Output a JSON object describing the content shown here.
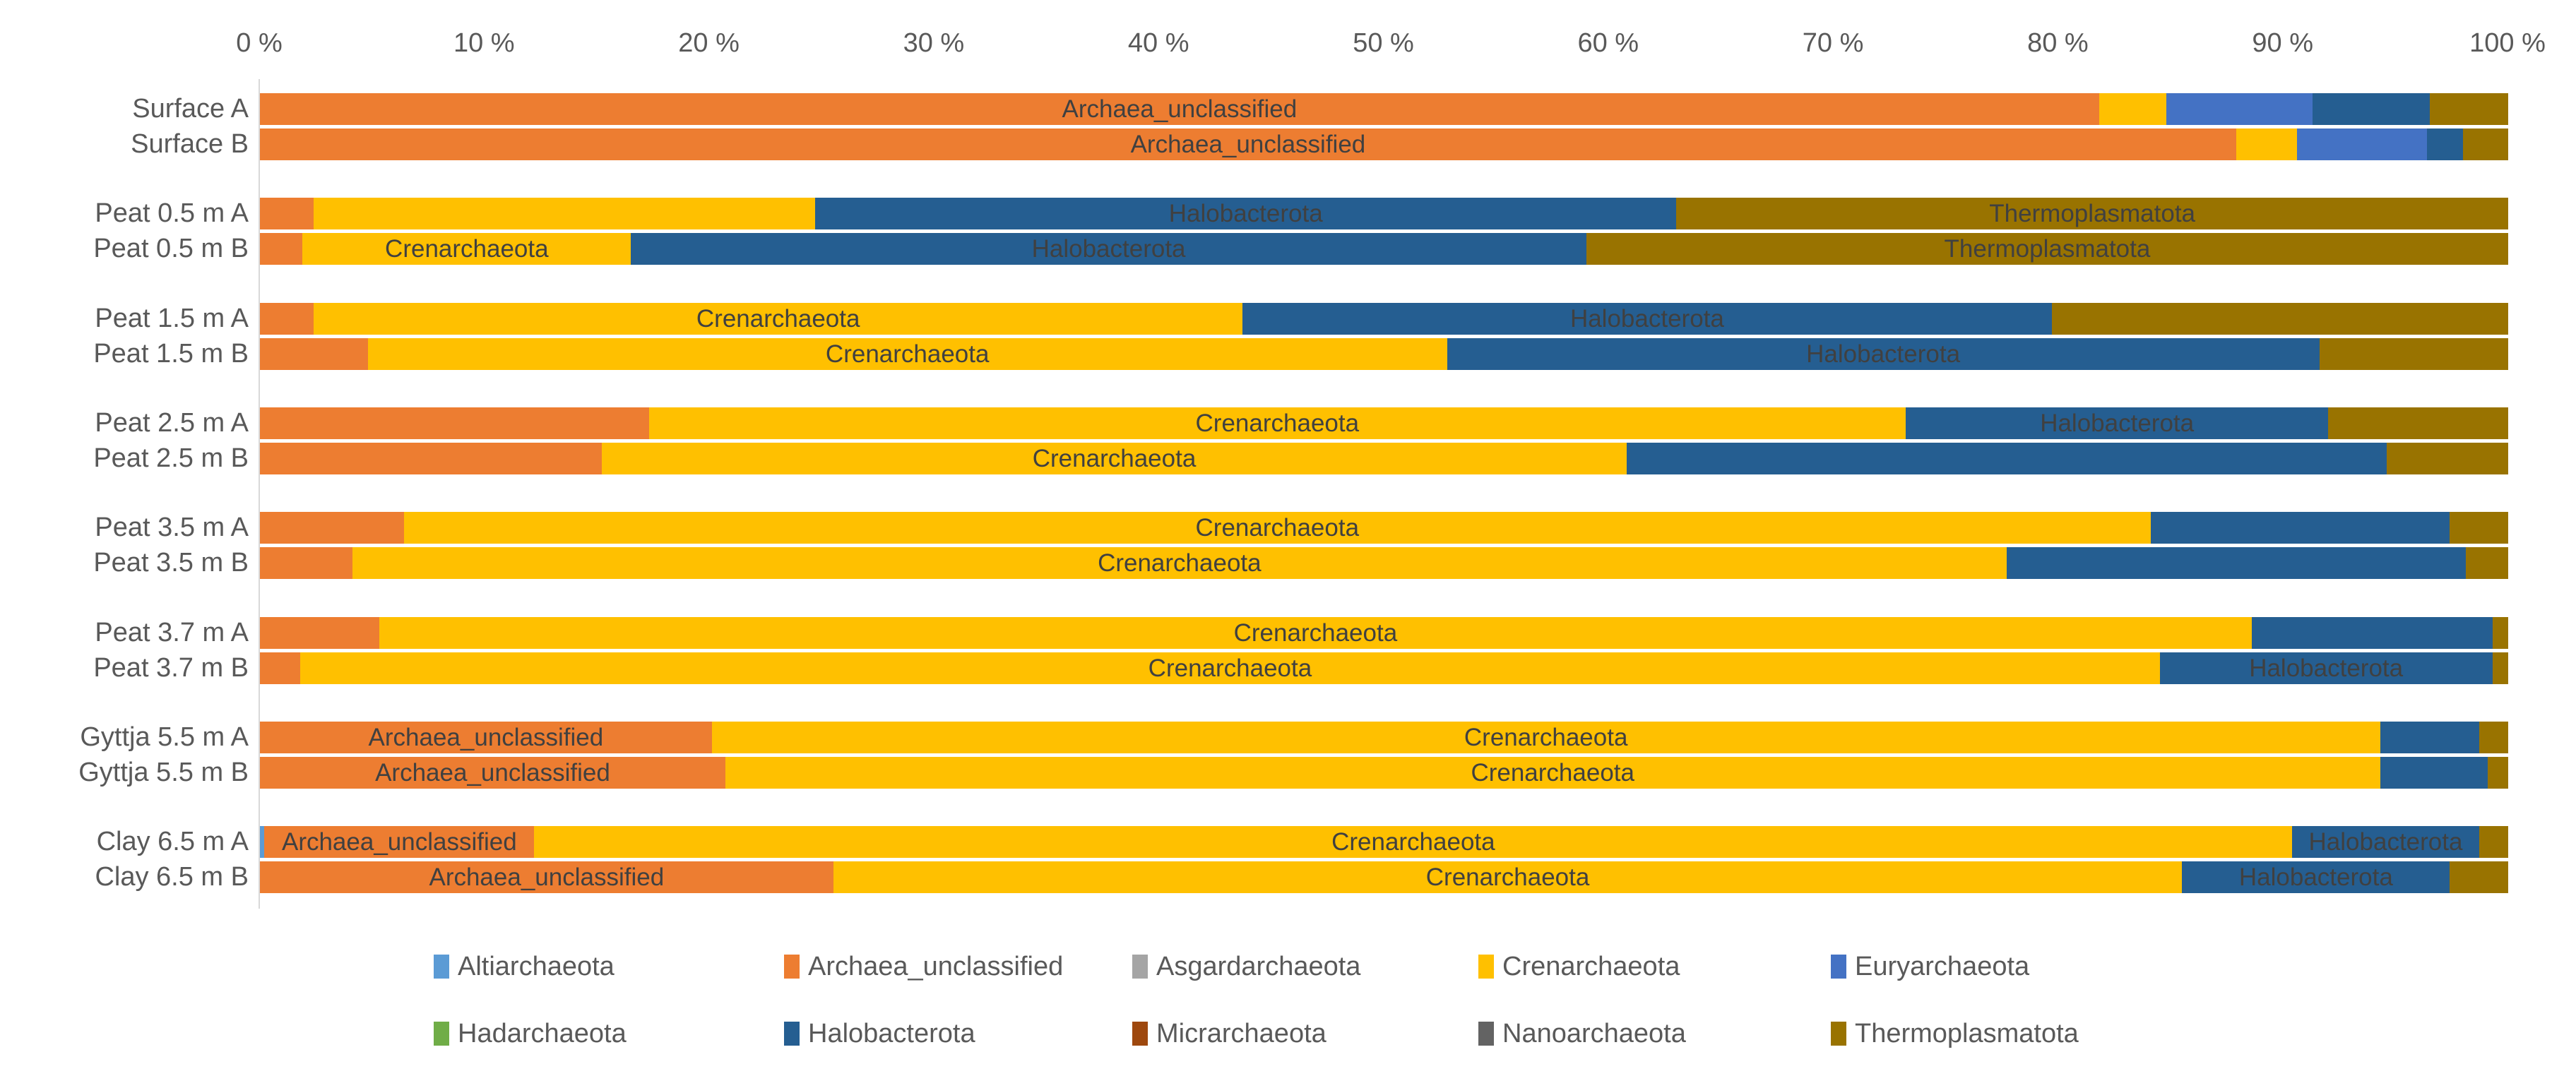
{
  "chart_data": {
    "type": "bar",
    "subtype": "horizontal-100pct-stacked",
    "title": "",
    "unit": "%",
    "x_axis": {
      "min": 0,
      "max": 100,
      "tick_step": 10,
      "tick_labels": [
        "0 %",
        "10 %",
        "20 %",
        "30 %",
        "40 %",
        "50 %",
        "60 %",
        "70 %",
        "80 %",
        "90 %",
        "100 %"
      ]
    },
    "legend": {
      "position": "bottom",
      "rows": [
        [
          "Altiarchaeota",
          "Archaea_unclassified",
          "Asgardarchaeota",
          "Crenarchaeota",
          "Euryarchaeota"
        ],
        [
          "Hadarchaeota",
          "Halobacterota",
          "Micrarchaeota",
          "Nanoarchaeota",
          "Thermoplasmatota"
        ]
      ]
    },
    "taxa_colors": {
      "Altiarchaeota": "#5B9BD5",
      "Archaea_unclassified": "#ED7D31",
      "Asgardarchaeota": "#A5A5A5",
      "Crenarchaeota": "#FFC000",
      "Euryarchaeota": "#4472C4",
      "Hadarchaeota": "#70AD47",
      "Halobacterota": "#255E91",
      "Micrarchaeota": "#9E480E",
      "Nanoarchaeota": "#636363",
      "Thermoplasmatota": "#997300"
    },
    "categories": [
      "Surface A",
      "Surface B",
      "Peat 0.5 m A",
      "Peat 0.5 m B",
      "Peat 1.5 m A",
      "Peat 1.5 m B",
      "Peat 2.5 m A",
      "Peat 2.5 m B",
      "Peat 3.5 m A",
      "Peat 3.5 m B",
      "Peat 3.7 m A",
      "Peat 3.7 m B",
      "Gyttja 5.5 m A",
      "Gyttja 5.5 m B",
      "Clay 6.5 m A",
      "Clay 6.5 m B"
    ],
    "rows": [
      {
        "label": "Surface A",
        "segments": [
          {
            "taxon": "Archaea_unclassified",
            "value": 81.8,
            "data_label": "Archaea_unclassified"
          },
          {
            "taxon": "Crenarchaeota",
            "value": 3.0
          },
          {
            "taxon": "Euryarchaeota",
            "value": 6.5
          },
          {
            "taxon": "Halobacterota",
            "value": 5.2
          },
          {
            "taxon": "Thermoplasmatota",
            "value": 3.5
          }
        ]
      },
      {
        "label": "Surface B",
        "segments": [
          {
            "taxon": "Archaea_unclassified",
            "value": 87.9,
            "data_label": "Archaea_unclassified"
          },
          {
            "taxon": "Crenarchaeota",
            "value": 2.7
          },
          {
            "taxon": "Euryarchaeota",
            "value": 5.8
          },
          {
            "taxon": "Halobacterota",
            "value": 1.6
          },
          {
            "taxon": "Thermoplasmatota",
            "value": 2.0
          }
        ]
      },
      {
        "label": "Peat 0.5 m A",
        "segments": [
          {
            "taxon": "Archaea_unclassified",
            "value": 2.4
          },
          {
            "taxon": "Crenarchaeota",
            "value": 22.3
          },
          {
            "taxon": "Halobacterota",
            "value": 38.3,
            "data_label": "Halobacterota"
          },
          {
            "taxon": "Thermoplasmatota",
            "value": 37.0,
            "data_label": "Thermoplasmatota"
          }
        ]
      },
      {
        "label": "Peat 0.5 m B",
        "segments": [
          {
            "taxon": "Archaea_unclassified",
            "value": 1.9
          },
          {
            "taxon": "Crenarchaeota",
            "value": 14.6,
            "data_label": "Crenarchaeota"
          },
          {
            "taxon": "Halobacterota",
            "value": 42.5,
            "data_label": "Halobacterota"
          },
          {
            "taxon": "Thermoplasmatota",
            "value": 41.0,
            "data_label": "Thermoplasmatota"
          }
        ]
      },
      {
        "label": "Peat 1.5 m A",
        "segments": [
          {
            "taxon": "Archaea_unclassified",
            "value": 2.4
          },
          {
            "taxon": "Crenarchaeota",
            "value": 41.3,
            "data_label": "Crenarchaeota"
          },
          {
            "taxon": "Halobacterota",
            "value": 36.0,
            "data_label": "Halobacterota"
          },
          {
            "taxon": "Thermoplasmatota",
            "value": 20.3
          }
        ]
      },
      {
        "label": "Peat 1.5 m B",
        "segments": [
          {
            "taxon": "Archaea_unclassified",
            "value": 4.8
          },
          {
            "taxon": "Crenarchaeota",
            "value": 48.0,
            "data_label": "Crenarchaeota"
          },
          {
            "taxon": "Halobacterota",
            "value": 38.8,
            "data_label": "Halobacterota"
          },
          {
            "taxon": "Thermoplasmatota",
            "value": 8.4
          }
        ]
      },
      {
        "label": "Peat 2.5 m A",
        "segments": [
          {
            "taxon": "Archaea_unclassified",
            "value": 17.3
          },
          {
            "taxon": "Crenarchaeota",
            "value": 55.9,
            "data_label": "Crenarchaeota"
          },
          {
            "taxon": "Halobacterota",
            "value": 18.8,
            "data_label": "Halobacterota"
          },
          {
            "taxon": "Thermoplasmatota",
            "value": 8.0
          }
        ]
      },
      {
        "label": "Peat 2.5 m B",
        "segments": [
          {
            "taxon": "Archaea_unclassified",
            "value": 15.2
          },
          {
            "taxon": "Crenarchaeota",
            "value": 45.6,
            "data_label": "Crenarchaeota"
          },
          {
            "taxon": "Halobacterota",
            "value": 33.8
          },
          {
            "taxon": "Thermoplasmatota",
            "value": 5.4
          }
        ]
      },
      {
        "label": "Peat 3.5 m A",
        "segments": [
          {
            "taxon": "Archaea_unclassified",
            "value": 6.4
          },
          {
            "taxon": "Crenarchaeota",
            "value": 77.7,
            "data_label": "Crenarchaeota"
          },
          {
            "taxon": "Halobacterota",
            "value": 13.3
          },
          {
            "taxon": "Thermoplasmatota",
            "value": 2.6
          }
        ]
      },
      {
        "label": "Peat 3.5 m B",
        "segments": [
          {
            "taxon": "Archaea_unclassified",
            "value": 4.1
          },
          {
            "taxon": "Crenarchaeota",
            "value": 73.6,
            "data_label": "Crenarchaeota"
          },
          {
            "taxon": "Halobacterota",
            "value": 20.4
          },
          {
            "taxon": "Thermoplasmatota",
            "value": 1.9
          }
        ]
      },
      {
        "label": "Peat 3.7 m A",
        "segments": [
          {
            "taxon": "Archaea_unclassified",
            "value": 5.3
          },
          {
            "taxon": "Crenarchaeota",
            "value": 83.3,
            "data_label": "Crenarchaeota"
          },
          {
            "taxon": "Halobacterota",
            "value": 10.7
          },
          {
            "taxon": "Thermoplasmatota",
            "value": 0.7
          }
        ]
      },
      {
        "label": "Peat 3.7 m B",
        "segments": [
          {
            "taxon": "Archaea_unclassified",
            "value": 1.8
          },
          {
            "taxon": "Crenarchaeota",
            "value": 82.7,
            "data_label": "Crenarchaeota"
          },
          {
            "taxon": "Halobacterota",
            "value": 14.8,
            "data_label": "Halobacterota"
          },
          {
            "taxon": "Thermoplasmatota",
            "value": 0.7
          }
        ]
      },
      {
        "label": "Gyttja 5.5 m A",
        "segments": [
          {
            "taxon": "Archaea_unclassified",
            "value": 20.1,
            "data_label": "Archaea_unclassified"
          },
          {
            "taxon": "Crenarchaeota",
            "value": 74.2,
            "data_label": "Crenarchaeota"
          },
          {
            "taxon": "Halobacterota",
            "value": 4.4
          },
          {
            "taxon": "Thermoplasmatota",
            "value": 1.3
          }
        ]
      },
      {
        "label": "Gyttja 5.5 m B",
        "segments": [
          {
            "taxon": "Archaea_unclassified",
            "value": 20.7,
            "data_label": "Archaea_unclassified"
          },
          {
            "taxon": "Crenarchaeota",
            "value": 73.6,
            "data_label": "Crenarchaeota"
          },
          {
            "taxon": "Halobacterota",
            "value": 4.8
          },
          {
            "taxon": "Thermoplasmatota",
            "value": 0.9
          }
        ]
      },
      {
        "label": "Clay 6.5 m A",
        "segments": [
          {
            "taxon": "Altiarchaeota",
            "value": 0.2
          },
          {
            "taxon": "Archaea_unclassified",
            "value": 12.0,
            "data_label": "Archaea_unclassified"
          },
          {
            "taxon": "Crenarchaeota",
            "value": 78.2,
            "data_label": "Crenarchaeota"
          },
          {
            "taxon": "Halobacterota",
            "value": 8.3,
            "data_label": "Halobacterota"
          },
          {
            "taxon": "Thermoplasmatota",
            "value": 1.3
          }
        ]
      },
      {
        "label": "Clay 6.5 m B",
        "segments": [
          {
            "taxon": "Archaea_unclassified",
            "value": 25.5,
            "data_label": "Archaea_unclassified"
          },
          {
            "taxon": "Crenarchaeota",
            "value": 60.0,
            "data_label": "Crenarchaeota"
          },
          {
            "taxon": "Halobacterota",
            "value": 11.9,
            "data_label": "Halobacterota"
          },
          {
            "taxon": "Thermoplasmatota",
            "value": 2.6
          }
        ]
      }
    ]
  },
  "colors": {
    "axis_text": "#595959",
    "category_text": "#595959",
    "bar_data_label_text": "#404040",
    "axis_line": "#D9D9D9",
    "background": "#FFFFFF"
  }
}
